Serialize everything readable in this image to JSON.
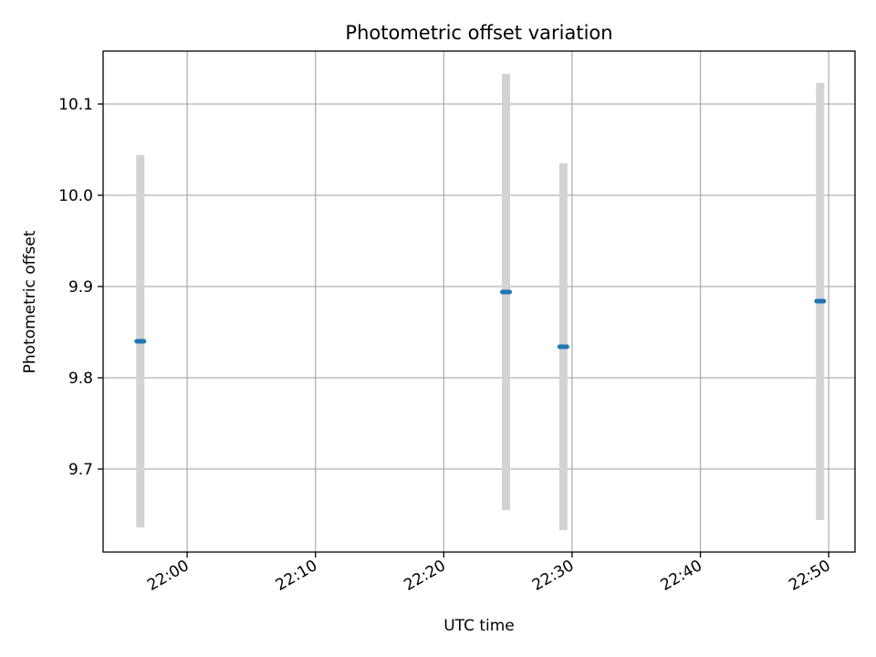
{
  "chart_data": {
    "type": "scatter",
    "title": "Photometric offset variation",
    "xlabel": "UTC time",
    "ylabel": "Photometric offset",
    "x_ticks": [
      "22:00",
      "22:10",
      "22:20",
      "22:30",
      "22:40",
      "22:50"
    ],
    "y_ticks": [
      "9.7",
      "9.8",
      "9.9",
      "10.0",
      "10.1"
    ],
    "xlim": [
      "21:53:27",
      "22:52:03"
    ],
    "ylim": [
      9.609,
      10.158
    ],
    "grid": true,
    "points": [
      {
        "x": "21:56:21",
        "y": 9.84,
        "yerr_low": 9.636,
        "yerr_high": 10.044
      },
      {
        "x": "22:24:51",
        "y": 9.894,
        "yerr_low": 9.655,
        "yerr_high": 10.133
      },
      {
        "x": "22:29:19",
        "y": 9.834,
        "yerr_low": 9.633,
        "yerr_high": 10.035
      },
      {
        "x": "22:49:20",
        "y": 9.884,
        "yerr_low": 9.644,
        "yerr_high": 10.123
      }
    ],
    "colors": {
      "marker": "#1f77b4",
      "errorbar": "#d3d3d3",
      "grid": "#b0b0b0",
      "axes": "#000000"
    }
  }
}
